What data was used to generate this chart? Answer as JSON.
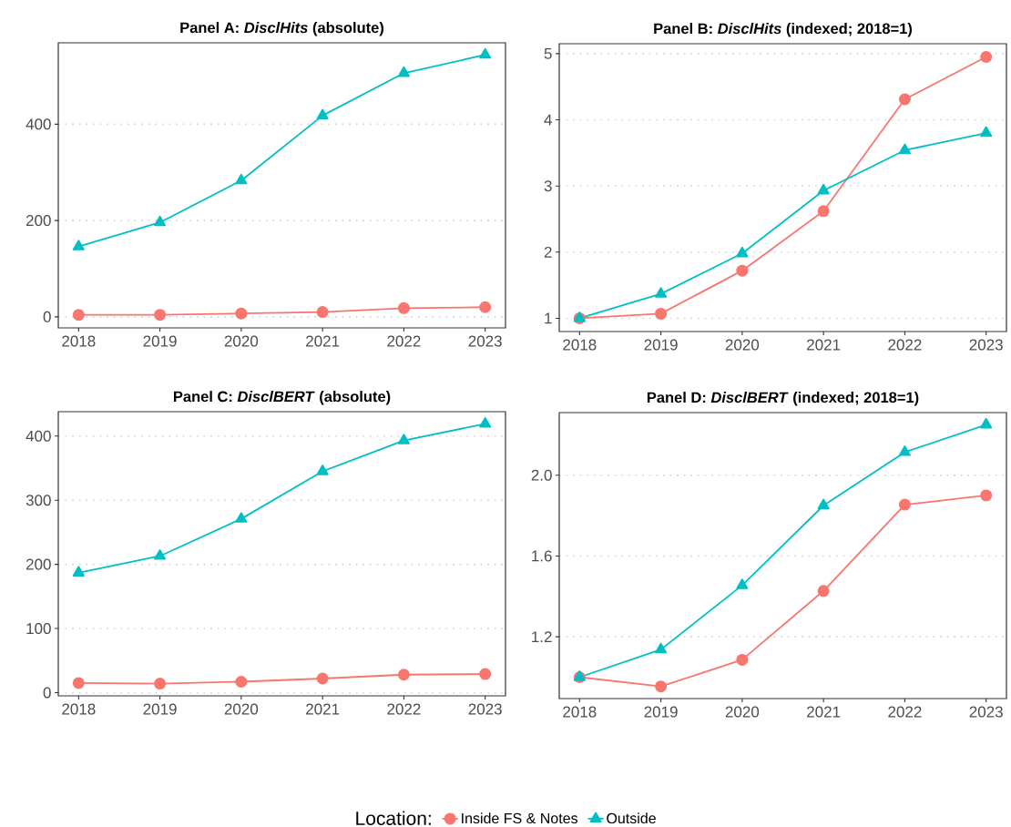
{
  "chart_data": [
    {
      "type": "line",
      "title": "Panel A: *DisclHits* (absolute)",
      "categories": [
        "2018",
        "2019",
        "2020",
        "2021",
        "2022",
        "2023"
      ],
      "ylim": [
        -23,
        569
      ],
      "yticks": [
        0,
        200,
        400
      ],
      "grid": "y",
      "line_style": "solid",
      "series": [
        {
          "color": "#f8766d",
          "marker": "circle",
          "values": [
            4,
            4,
            7,
            10,
            18,
            20
          ]
        },
        {
          "color": "#00bfc4",
          "marker": "triangle",
          "values": [
            146,
            196,
            283,
            418,
            506,
            544
          ]
        }
      ]
    },
    {
      "type": "line",
      "title": "Panel B: *DisclHits* (indexed; 2018=1)",
      "categories": [
        "2018",
        "2019",
        "2020",
        "2021",
        "2022",
        "2023"
      ],
      "ylim": [
        0.8,
        5.15
      ],
      "yticks": [
        1,
        2,
        3,
        4,
        5
      ],
      "grid": "y",
      "line_style": "solid",
      "series": [
        {
          "color": "#f8766d",
          "marker": "circle",
          "values": [
            1.0,
            1.07,
            1.72,
            2.62,
            4.31,
            4.95
          ]
        },
        {
          "color": "#00bfc4",
          "marker": "triangle",
          "values": [
            1.0,
            1.37,
            1.98,
            2.93,
            3.54,
            3.8
          ]
        }
      ]
    },
    {
      "type": "line",
      "title": "Panel C: *DisclBERT* (absolute)",
      "categories": [
        "2018",
        "2019",
        "2020",
        "2021",
        "2022",
        "2023"
      ],
      "ylim": [
        -5,
        438
      ],
      "yticks": [
        0,
        100,
        200,
        300,
        400
      ],
      "grid": "y",
      "line_style": "solid",
      "series": [
        {
          "color": "#f8766d",
          "marker": "circle",
          "values": [
            15,
            14,
            17,
            22,
            28,
            29
          ]
        },
        {
          "color": "#00bfc4",
          "marker": "triangle",
          "values": [
            187,
            213,
            271,
            345,
            393,
            419
          ]
        }
      ]
    },
    {
      "type": "line",
      "title": "Panel D: *DisclBERT* (indexed; 2018=1)",
      "categories": [
        "2018",
        "2019",
        "2020",
        "2021",
        "2022",
        "2023"
      ],
      "ylim": [
        0.894,
        2.31
      ],
      "yticks": [
        {
          "value": 1.2,
          "label": "1.2"
        },
        {
          "value": 1.6,
          "label": "1.6"
        },
        {
          "value": 2,
          "label": "2.0"
        }
      ],
      "grid": "y",
      "line_style": "solid",
      "legend": "bottom",
      "legend_title": "Location:",
      "series": [
        {
          "name": "Inside FS & Notes",
          "color": "#f8766d",
          "marker": "circle",
          "values": [
            1.0,
            0.954,
            1.086,
            1.427,
            1.854,
            1.9
          ]
        },
        {
          "name": "Outside",
          "color": "#00bfc4",
          "marker": "triangle",
          "values": [
            1.0,
            1.137,
            1.455,
            1.85,
            2.114,
            2.25
          ]
        }
      ]
    }
  ]
}
